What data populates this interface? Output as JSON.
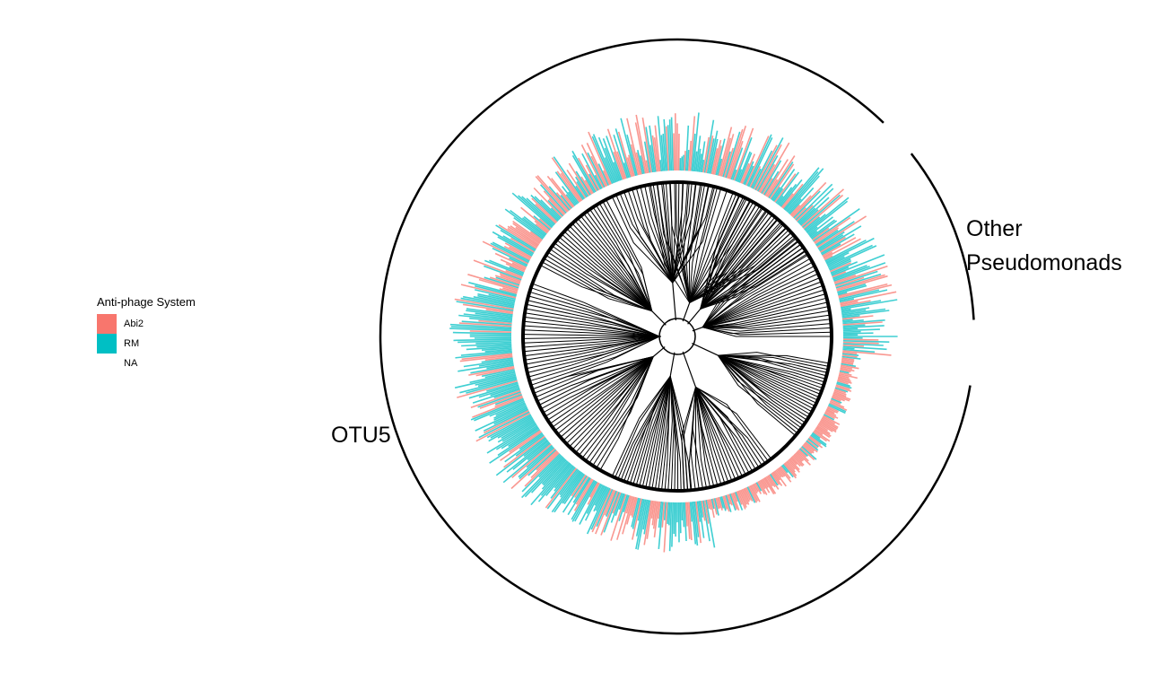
{
  "legend": {
    "title": "Anti-phage System",
    "items": [
      {
        "label": "Abi2",
        "color": "#F8766D"
      },
      {
        "label": "RM",
        "color": "#00BFC4"
      },
      {
        "label": "NA",
        "color": "#ffffff"
      }
    ]
  },
  "clades": {
    "otu5": "OTU5",
    "other_line1": "Other",
    "other_line2": "Pseudomonads"
  },
  "colors": {
    "tree": "#000000",
    "abi2": "#F8766D",
    "rm": "#00BFC4"
  }
}
